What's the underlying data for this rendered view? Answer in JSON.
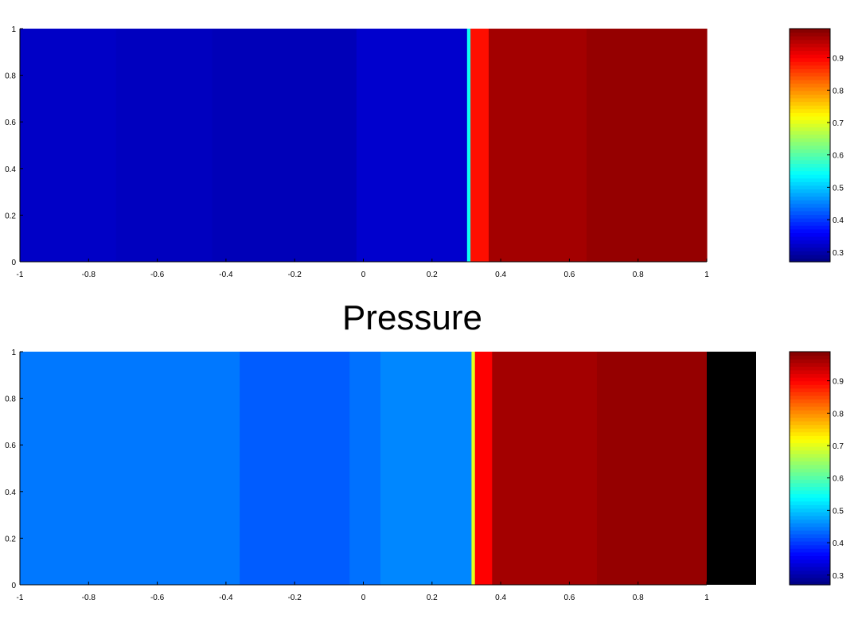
{
  "caption": "Pressure",
  "chart_data": [
    {
      "type": "heatmap",
      "xlim": [
        -1,
        1
      ],
      "ylim": [
        0,
        1
      ],
      "x_ticks": [
        "-1",
        "-0.8",
        "-0.6",
        "-0.4",
        "-0.2",
        "0",
        "0.2",
        "0.4",
        "0.6",
        "0.8",
        "1"
      ],
      "y_ticks": [
        "0",
        "0.2",
        "0.4",
        "0.6",
        "0.8",
        "1"
      ],
      "field": [
        {
          "x0": -1.0,
          "x1": -0.72,
          "value": 0.32
        },
        {
          "x0": -0.72,
          "x1": -0.44,
          "value": 0.315
        },
        {
          "x0": -0.44,
          "x1": -0.02,
          "value": 0.31
        },
        {
          "x0": -0.02,
          "x1": 0.302,
          "value": 0.325
        },
        {
          "x0": 0.302,
          "x1": 0.312,
          "value": 0.55
        },
        {
          "x0": 0.312,
          "x1": 0.365,
          "value": 0.89
        },
        {
          "x0": 0.365,
          "x1": 0.65,
          "value": 0.965
        },
        {
          "x0": 0.65,
          "x1": 1.0,
          "value": 0.975
        }
      ],
      "colorbar": {
        "range": [
          0.27,
          0.99
        ],
        "ticks": [
          "0.3",
          "0.4",
          "0.5",
          "0.6",
          "0.7",
          "0.8",
          "0.9"
        ]
      }
    },
    {
      "type": "heatmap",
      "xlim": [
        -1,
        1
      ],
      "ylim": [
        0,
        1
      ],
      "x_ticks": [
        "-1",
        "-0.8",
        "-0.6",
        "-0.4",
        "-0.2",
        "0",
        "0.2",
        "0.4",
        "0.6",
        "0.8",
        "1"
      ],
      "y_ticks": [
        "0",
        "0.2",
        "0.4",
        "0.6",
        "0.8",
        "1"
      ],
      "field": [
        {
          "x0": -1.0,
          "x1": -0.36,
          "value": 0.445
        },
        {
          "x0": -0.36,
          "x1": -0.04,
          "value": 0.425
        },
        {
          "x0": -0.04,
          "x1": 0.05,
          "value": 0.44
        },
        {
          "x0": 0.05,
          "x1": 0.315,
          "value": 0.455
        },
        {
          "x0": 0.315,
          "x1": 0.325,
          "value": 0.7
        },
        {
          "x0": 0.325,
          "x1": 0.375,
          "value": 0.9
        },
        {
          "x0": 0.375,
          "x1": 0.68,
          "value": 0.965
        },
        {
          "x0": 0.68,
          "x1": 1.0,
          "value": 0.975
        }
      ],
      "right_block_color": "#000000",
      "colorbar": {
        "range": [
          0.27,
          0.99
        ],
        "ticks": [
          "0.3",
          "0.4",
          "0.5",
          "0.6",
          "0.7",
          "0.8",
          "0.9"
        ]
      }
    }
  ]
}
